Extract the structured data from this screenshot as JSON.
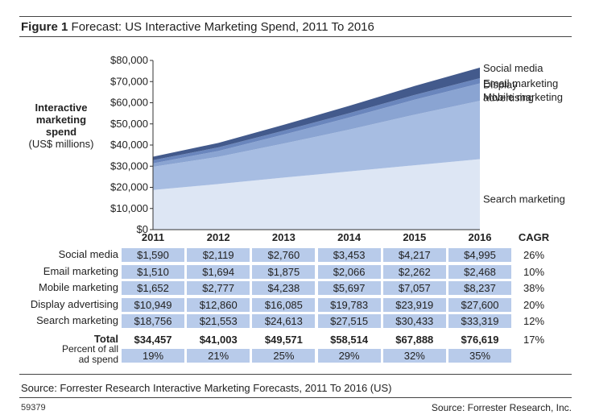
{
  "figure": {
    "label": "Figure 1",
    "title": "Forecast: US Interactive Marketing Spend, 2011 To 2016"
  },
  "y_axis_title": {
    "bold_lines": [
      "Interactive",
      "marketing",
      "spend"
    ],
    "unit_line": "(US$ millions)"
  },
  "colors": {
    "Search marketing": "#dde6f4",
    "Display advertising": "#a7bde2",
    "Mobile marketing": "#8aa4d2",
    "Email marketing": "#6a86bd",
    "Social media": "#435a8c",
    "table_cell": "#b8cbea"
  },
  "chart_data": {
    "type": "area",
    "stacked": true,
    "x": [
      "2011",
      "2012",
      "2013",
      "2014",
      "2015",
      "2016"
    ],
    "ylim": [
      0,
      80000
    ],
    "yticks": [
      "$0",
      "$10,000",
      "$20,000",
      "$30,000",
      "$40,000",
      "$50,000",
      "$60,000",
      "$70,000",
      "$80,000"
    ],
    "grid": false,
    "legend": "right",
    "series": [
      {
        "name": "Search marketing",
        "values": [
          18756,
          21553,
          24613,
          27515,
          30433,
          33319
        ]
      },
      {
        "name": "Display advertising",
        "values": [
          10949,
          12860,
          16085,
          19783,
          23919,
          27600
        ]
      },
      {
        "name": "Mobile marketing",
        "values": [
          1652,
          2777,
          4238,
          5697,
          7057,
          8237
        ]
      },
      {
        "name": "Email marketing",
        "values": [
          1510,
          1694,
          1875,
          2066,
          2262,
          2468
        ]
      },
      {
        "name": "Social media",
        "values": [
          1590,
          2119,
          2760,
          3453,
          4217,
          4995
        ]
      }
    ]
  },
  "legend_labels": {
    "Social media": [
      "Social media"
    ],
    "Email marketing": [
      "Email marketing"
    ],
    "Mobile marketing": [
      "Mobile marketing"
    ],
    "Display advertising": [
      "Display",
      "advertising"
    ],
    "Search marketing": [
      "Search marketing"
    ]
  },
  "table": {
    "cagr_header": "CAGR",
    "rows": [
      {
        "label": [
          "Social media"
        ],
        "values": [
          "$1,590",
          "$2,119",
          "$2,760",
          "$3,453",
          "$4,217",
          "$4,995"
        ],
        "cagr": "26%"
      },
      {
        "label": [
          "Email marketing"
        ],
        "values": [
          "$1,510",
          "$1,694",
          "$1,875",
          "$2,066",
          "$2,262",
          "$2,468"
        ],
        "cagr": "10%"
      },
      {
        "label": [
          "Mobile marketing"
        ],
        "values": [
          "$1,652",
          "$2,777",
          "$4,238",
          "$5,697",
          "$7,057",
          "$8,237"
        ],
        "cagr": "38%"
      },
      {
        "label": [
          "Display advertising"
        ],
        "values": [
          "$10,949",
          "$12,860",
          "$16,085",
          "$19,783",
          "$23,919",
          "$27,600"
        ],
        "cagr": "20%"
      },
      {
        "label": [
          "Search marketing"
        ],
        "values": [
          "$18,756",
          "$21,553",
          "$24,613",
          "$27,515",
          "$30,433",
          "$33,319"
        ],
        "cagr": "12%"
      },
      {
        "label": [
          "Total"
        ],
        "values": [
          "$34,457",
          "$41,003",
          "$49,571",
          "$58,514",
          "$67,888",
          "$76,619"
        ],
        "cagr": "17%",
        "bold": true
      },
      {
        "label": [
          "Percent of all",
          "ad spend"
        ],
        "values": [
          "19%",
          "21%",
          "25%",
          "29%",
          "32%",
          "35%"
        ],
        "cagr": ""
      }
    ]
  },
  "footer": {
    "source_line": "Source: Forrester Research Interactive Marketing Forecasts, 2011 To 2016 (US)",
    "figure_id": "59379",
    "source_right": "Source: Forrester Research, Inc."
  }
}
